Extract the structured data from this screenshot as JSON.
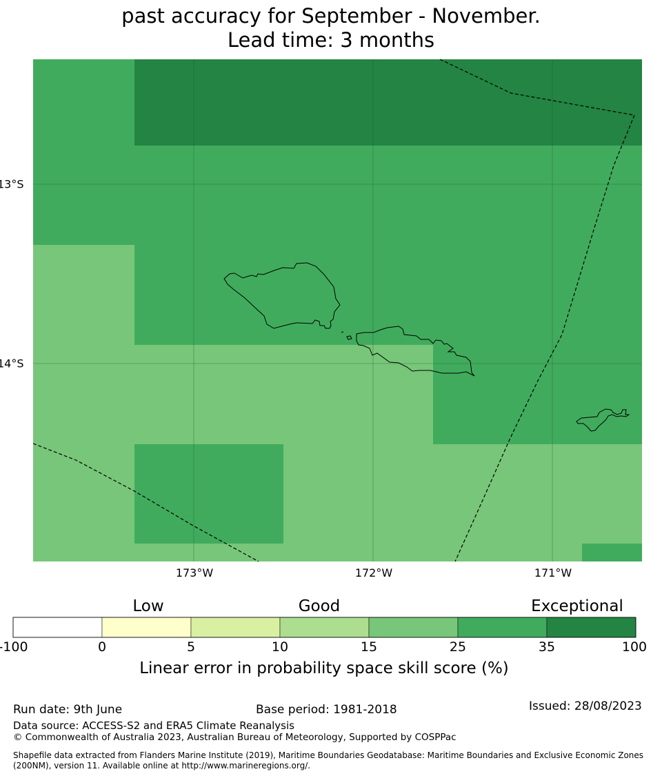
{
  "title": {
    "line1": "past accuracy for September - November.",
    "line2": "Lead time: 3 months"
  },
  "map": {
    "lat_labels": [
      "13°S",
      "14°S"
    ],
    "lon_labels": [
      "173°W",
      "172°W",
      "171°W"
    ],
    "skill_colors": {
      "light_green": "#78c679",
      "mid_green": "#41ab5d",
      "dark_green": "#238443"
    }
  },
  "legend": {
    "categories": [
      "Low",
      "Good",
      "Exceptional"
    ],
    "bins": [
      {
        "from": -100,
        "to": 0,
        "color": "#ffffff"
      },
      {
        "from": 0,
        "to": 5,
        "color": "#ffffcc"
      },
      {
        "from": 5,
        "to": 10,
        "color": "#d9f0a3"
      },
      {
        "from": 10,
        "to": 15,
        "color": "#addd8e"
      },
      {
        "from": 15,
        "to": 25,
        "color": "#78c679"
      },
      {
        "from": 25,
        "to": 35,
        "color": "#41ab5d"
      },
      {
        "from": 35,
        "to": 100,
        "color": "#238443"
      }
    ],
    "ticks": [
      "-100",
      "0",
      "5",
      "10",
      "15",
      "25",
      "35",
      "100"
    ],
    "title": "Linear error in probability space skill score (%)"
  },
  "footer": {
    "run_date": "Run date: 9th June",
    "base_period": "Base period: 1981-2018",
    "issued": "Issued: 28/08/2023",
    "data_source": "Data source: ACCESS-S2 and ERA5 Climate Reanalysis",
    "copyright": "© Commonwealth of Australia 2023, Australian Bureau of Meteorology, Supported by COSPPac",
    "shapefile_line1": "Shapefile data extracted from Flanders Marine Institute (2019), Maritime Boundaries Geodatabase: Maritime Boundaries and Exclusive Economic Zones",
    "shapefile_line2": "(200NM), version 11. Available online at http://www.marineregions.org/."
  }
}
